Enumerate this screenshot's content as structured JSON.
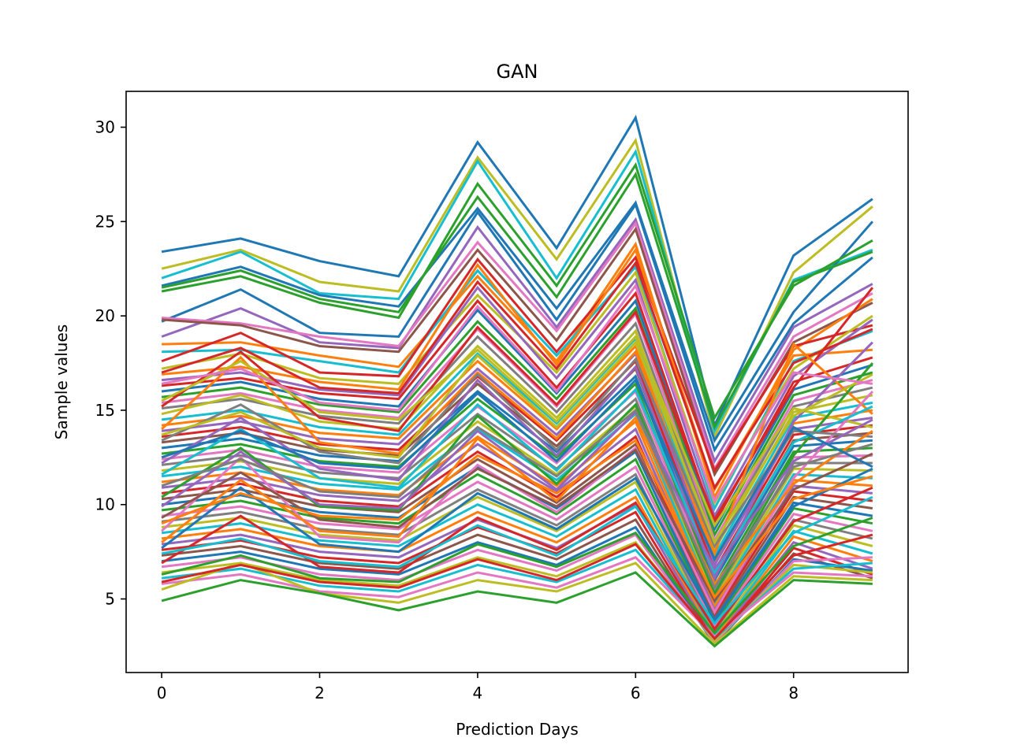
{
  "chart_data": {
    "type": "line",
    "title": "GAN",
    "xlabel": "Prediction Days",
    "ylabel": "Sample values",
    "xlim": [
      -0.45,
      9.45
    ],
    "ylim": [
      1.1,
      31.9
    ],
    "xticks": [
      0,
      2,
      4,
      6,
      8
    ],
    "yticks": [
      5,
      10,
      15,
      20,
      25,
      30
    ],
    "grid": false,
    "legend": "none",
    "x": [
      0,
      1,
      2,
      3,
      4,
      5,
      6,
      7,
      8,
      9
    ],
    "palette": [
      "#1f77b4",
      "#ff7f0e",
      "#2ca02c",
      "#d62728",
      "#9467bd",
      "#8c564b",
      "#e377c2",
      "#7f7f7f",
      "#bcbd22",
      "#17becf"
    ],
    "series": [
      {
        "color": "#1f77b4",
        "values": [
          23.4,
          24.1,
          22.9,
          22.1,
          29.2,
          23.6,
          30.5,
          14.2,
          23.2,
          26.2
        ]
      },
      {
        "color": "#bcbd22",
        "values": [
          22.5,
          23.5,
          21.8,
          21.3,
          28.4,
          23.0,
          29.3,
          13.6,
          22.3,
          25.8
        ]
      },
      {
        "color": "#17becf",
        "values": [
          22.0,
          23.4,
          21.2,
          20.9,
          28.2,
          22.0,
          28.7,
          13.9,
          21.9,
          23.5
        ]
      },
      {
        "color": "#1f77b4",
        "values": [
          21.6,
          22.6,
          21.1,
          20.5,
          25.7,
          20.4,
          26.0,
          13.4,
          20.2,
          25.0
        ]
      },
      {
        "color": "#2ca02c",
        "values": [
          21.3,
          22.1,
          20.7,
          19.9,
          27.0,
          21.6,
          28.0,
          14.6,
          21.6,
          24.0
        ]
      },
      {
        "color": "#2ca02c",
        "values": [
          21.5,
          22.4,
          20.9,
          20.2,
          26.3,
          21.0,
          27.5,
          14.1,
          21.8,
          23.4
        ]
      },
      {
        "color": "#1f77b4",
        "values": [
          19.7,
          21.4,
          19.1,
          18.9,
          25.5,
          19.8,
          25.9,
          12.9,
          19.6,
          23.1
        ]
      },
      {
        "color": "#9467bd",
        "values": [
          18.9,
          20.4,
          18.6,
          18.3,
          24.7,
          19.4,
          25.1,
          12.3,
          19.4,
          21.7
        ]
      },
      {
        "color": "#e377c2",
        "values": [
          19.9,
          19.6,
          18.9,
          18.4,
          23.9,
          19.2,
          24.9,
          11.9,
          18.9,
          21.2
        ]
      },
      {
        "color": "#8c564b",
        "values": [
          19.8,
          19.5,
          18.4,
          18.1,
          23.5,
          18.7,
          24.6,
          11.6,
          18.6,
          20.7
        ]
      },
      {
        "color": "#ff7f0e",
        "values": [
          18.5,
          18.6,
          17.9,
          17.3,
          22.1,
          17.6,
          23.8,
          10.4,
          18.2,
          20.9
        ]
      },
      {
        "color": "#17becf",
        "values": [
          18.1,
          18.2,
          17.6,
          17.0,
          22.4,
          17.9,
          22.6,
          9.8,
          17.6,
          19.2
        ]
      },
      {
        "color": "#d62728",
        "values": [
          17.6,
          19.1,
          17.0,
          16.8,
          23.0,
          18.1,
          23.1,
          11.8,
          18.4,
          19.5
        ]
      },
      {
        "color": "#bcbd22",
        "values": [
          17.2,
          18.0,
          16.7,
          16.4,
          21.1,
          17.0,
          22.3,
          10.1,
          17.2,
          20.0
        ]
      },
      {
        "color": "#ff7f0e",
        "values": [
          16.9,
          17.3,
          16.5,
          16.1,
          22.7,
          17.4,
          23.5,
          10.8,
          17.9,
          18.2
        ]
      },
      {
        "color": "#9467bd",
        "values": [
          16.6,
          17.0,
          16.1,
          15.8,
          21.5,
          16.7,
          21.9,
          9.4,
          16.8,
          19.8
        ]
      },
      {
        "color": "#d62728",
        "values": [
          16.3,
          16.7,
          15.9,
          15.6,
          20.8,
          16.2,
          21.2,
          9.0,
          16.5,
          17.8
        ]
      },
      {
        "color": "#1f77b4",
        "values": [
          16.0,
          16.5,
          15.6,
          15.2,
          20.3,
          15.9,
          20.8,
          8.7,
          16.1,
          17.4
        ]
      },
      {
        "color": "#2ca02c",
        "values": [
          15.7,
          16.2,
          15.3,
          14.9,
          19.7,
          15.6,
          20.4,
          8.4,
          15.8,
          17.0
        ]
      },
      {
        "color": "#e377c2",
        "values": [
          15.4,
          15.9,
          15.0,
          14.6,
          19.3,
          15.2,
          20.1,
          8.1,
          15.5,
          16.6
        ]
      },
      {
        "color": "#7f7f7f",
        "values": [
          15.1,
          15.6,
          14.7,
          14.3,
          18.9,
          14.9,
          19.6,
          7.9,
          15.2,
          16.2
        ]
      },
      {
        "color": "#bcbd22",
        "values": [
          14.8,
          15.8,
          14.4,
          14.0,
          18.4,
          14.6,
          19.2,
          7.6,
          14.9,
          15.8
        ]
      },
      {
        "color": "#17becf",
        "values": [
          14.5,
          15.0,
          14.1,
          13.7,
          18.0,
          14.3,
          18.8,
          7.3,
          14.6,
          15.4
        ]
      },
      {
        "color": "#ff7f0e",
        "values": [
          14.2,
          14.7,
          13.8,
          13.5,
          17.6,
          14.0,
          18.4,
          7.0,
          14.3,
          15.0
        ]
      },
      {
        "color": "#9467bd",
        "values": [
          13.9,
          14.4,
          13.5,
          13.2,
          17.2,
          13.7,
          18.0,
          6.8,
          14.0,
          14.6
        ]
      },
      {
        "color": "#d62728",
        "values": [
          13.6,
          14.1,
          13.2,
          12.9,
          16.8,
          13.4,
          17.6,
          6.5,
          13.7,
          14.2
        ]
      },
      {
        "color": "#8c564b",
        "values": [
          13.3,
          13.8,
          12.9,
          12.6,
          16.4,
          13.1,
          17.2,
          6.2,
          13.4,
          13.8
        ]
      },
      {
        "color": "#1f77b4",
        "values": [
          13.0,
          13.5,
          12.6,
          12.3,
          16.0,
          12.8,
          16.8,
          6.0,
          13.1,
          13.4
        ]
      },
      {
        "color": "#2ca02c",
        "values": [
          12.7,
          13.2,
          12.3,
          12.0,
          15.6,
          12.5,
          16.4,
          5.7,
          12.8,
          13.0
        ]
      },
      {
        "color": "#e377c2",
        "values": [
          12.4,
          12.9,
          12.0,
          11.7,
          15.2,
          12.2,
          16.0,
          5.5,
          12.5,
          12.6
        ]
      },
      {
        "color": "#7f7f7f",
        "values": [
          12.1,
          12.6,
          11.7,
          11.4,
          14.8,
          11.9,
          15.6,
          5.2,
          12.2,
          12.2
        ]
      },
      {
        "color": "#bcbd22",
        "values": [
          11.8,
          12.3,
          11.4,
          11.1,
          14.4,
          11.6,
          15.2,
          5.0,
          11.9,
          11.8
        ]
      },
      {
        "color": "#17becf",
        "values": [
          11.5,
          12.0,
          11.1,
          10.8,
          14.0,
          11.3,
          14.8,
          4.8,
          11.6,
          11.4
        ]
      },
      {
        "color": "#ff7f0e",
        "values": [
          11.2,
          11.7,
          10.8,
          10.5,
          13.6,
          11.0,
          14.4,
          4.6,
          11.3,
          11.0
        ]
      },
      {
        "color": "#9467bd",
        "values": [
          10.9,
          11.4,
          10.5,
          10.2,
          13.2,
          10.7,
          14.0,
          4.4,
          11.0,
          10.6
        ]
      },
      {
        "color": "#d62728",
        "values": [
          10.6,
          11.1,
          10.2,
          9.9,
          12.8,
          10.4,
          13.6,
          4.2,
          10.7,
          10.2
        ]
      },
      {
        "color": "#8c564b",
        "values": [
          10.3,
          10.8,
          9.9,
          9.6,
          12.4,
          10.1,
          13.2,
          4.0,
          10.4,
          9.8
        ]
      },
      {
        "color": "#1f77b4",
        "values": [
          10.0,
          10.5,
          9.6,
          9.3,
          12.0,
          9.8,
          12.8,
          3.8,
          10.1,
          9.4
        ]
      },
      {
        "color": "#2ca02c",
        "values": [
          9.7,
          10.2,
          9.3,
          9.0,
          11.6,
          9.5,
          12.4,
          3.6,
          9.8,
          9.0
        ]
      },
      {
        "color": "#e377c2",
        "values": [
          9.4,
          9.9,
          9.0,
          8.7,
          11.2,
          9.2,
          12.0,
          3.5,
          9.5,
          8.6
        ]
      },
      {
        "color": "#7f7f7f",
        "values": [
          9.1,
          9.6,
          8.7,
          8.4,
          10.8,
          8.9,
          11.6,
          3.3,
          9.2,
          8.2
        ]
      },
      {
        "color": "#bcbd22",
        "values": [
          8.8,
          9.3,
          8.4,
          8.1,
          10.4,
          8.6,
          11.2,
          3.1,
          8.9,
          7.8
        ]
      },
      {
        "color": "#17becf",
        "values": [
          8.5,
          9.0,
          8.1,
          7.8,
          10.0,
          8.3,
          10.8,
          3.0,
          8.6,
          7.4
        ]
      },
      {
        "color": "#ff7f0e",
        "values": [
          8.2,
          8.7,
          7.8,
          7.5,
          9.6,
          8.0,
          10.4,
          2.9,
          8.3,
          7.0
        ]
      },
      {
        "color": "#9467bd",
        "values": [
          7.9,
          8.4,
          7.5,
          7.2,
          9.2,
          7.7,
          10.0,
          2.8,
          8.0,
          6.6
        ]
      },
      {
        "color": "#d62728",
        "values": [
          7.6,
          8.1,
          7.2,
          6.9,
          8.8,
          7.4,
          9.6,
          2.7,
          7.7,
          6.3
        ]
      },
      {
        "color": "#8c564b",
        "values": [
          7.3,
          7.8,
          6.9,
          6.6,
          8.4,
          7.1,
          9.2,
          2.6,
          7.4,
          6.1
        ]
      },
      {
        "color": "#1f77b4",
        "values": [
          7.0,
          7.5,
          6.6,
          6.3,
          8.0,
          6.8,
          8.8,
          2.6,
          7.1,
          6.5
        ]
      },
      {
        "color": "#e377c2",
        "values": [
          6.7,
          7.2,
          6.3,
          6.0,
          7.6,
          6.5,
          8.4,
          2.7,
          7.0,
          7.2
        ]
      },
      {
        "color": "#bcbd22",
        "values": [
          6.4,
          6.9,
          6.0,
          5.7,
          7.2,
          6.2,
          8.0,
          2.8,
          6.8,
          6.4
        ]
      },
      {
        "color": "#17becf",
        "values": [
          6.1,
          6.6,
          5.7,
          5.4,
          6.8,
          5.9,
          7.6,
          2.9,
          6.6,
          6.9
        ]
      },
      {
        "color": "#e377c2",
        "values": [
          5.8,
          6.3,
          5.4,
          5.1,
          6.4,
          5.6,
          7.2,
          3.0,
          6.4,
          6.2
        ]
      },
      {
        "color": "#bcbd22",
        "values": [
          5.5,
          6.9,
          5.3,
          4.8,
          6.0,
          5.4,
          6.9,
          2.6,
          6.2,
          6.0
        ]
      },
      {
        "color": "#2ca02c",
        "values": [
          4.9,
          6.0,
          5.3,
          4.4,
          5.4,
          4.8,
          6.4,
          2.5,
          6.0,
          5.8
        ]
      },
      {
        "color": "#d62728",
        "values": [
          15.2,
          18.1,
          14.6,
          13.9,
          19.4,
          15.3,
          20.2,
          9.2,
          16.2,
          21.5
        ]
      },
      {
        "color": "#d62728",
        "values": [
          17.0,
          18.3,
          16.2,
          15.9,
          21.8,
          17.2,
          22.8,
          10.9,
          17.5,
          19.3
        ]
      },
      {
        "color": "#ff7f0e",
        "values": [
          14.0,
          17.8,
          13.3,
          12.7,
          17.0,
          13.5,
          18.1,
          7.4,
          18.5,
          14.8
        ]
      },
      {
        "color": "#bcbd22",
        "values": [
          15.5,
          17.6,
          14.9,
          14.5,
          18.2,
          14.4,
          18.9,
          8.9,
          15.1,
          14.1
        ]
      },
      {
        "color": "#9467bd",
        "values": [
          12.2,
          14.6,
          11.9,
          11.3,
          16.6,
          12.6,
          17.3,
          6.1,
          14.4,
          18.6
        ]
      },
      {
        "color": "#2ca02c",
        "values": [
          10.4,
          13.0,
          9.9,
          9.7,
          14.7,
          11.1,
          15.3,
          5.3,
          12.6,
          17.5
        ]
      },
      {
        "color": "#e377c2",
        "values": [
          8.6,
          12.5,
          8.3,
          8.0,
          12.1,
          9.6,
          13.0,
          4.3,
          11.4,
          16.0
        ]
      },
      {
        "color": "#17becf",
        "values": [
          11.6,
          14.0,
          11.4,
          10.9,
          15.3,
          11.8,
          16.1,
          6.4,
          13.3,
          15.2
        ]
      },
      {
        "color": "#7f7f7f",
        "values": [
          13.4,
          15.3,
          12.8,
          12.2,
          16.9,
          12.9,
          17.7,
          7.8,
          13.9,
          13.6
        ]
      },
      {
        "color": "#8c564b",
        "values": [
          9.3,
          11.7,
          9.2,
          8.8,
          11.9,
          9.9,
          12.9,
          4.9,
          10.8,
          12.7
        ]
      },
      {
        "color": "#1f77b4",
        "values": [
          7.7,
          10.9,
          7.9,
          7.5,
          10.6,
          8.7,
          11.4,
          3.9,
          9.9,
          11.9
        ]
      },
      {
        "color": "#d62728",
        "values": [
          6.9,
          9.4,
          6.7,
          6.4,
          9.3,
          7.6,
          10.1,
          3.4,
          9.1,
          10.9
        ]
      },
      {
        "color": "#ff7f0e",
        "values": [
          8.0,
          11.3,
          8.6,
          8.3,
          13.5,
          10.2,
          14.6,
          5.8,
          11.1,
          13.9
        ]
      },
      {
        "color": "#9467bd",
        "values": [
          9.9,
          12.8,
          10.0,
          9.8,
          13.9,
          10.8,
          14.9,
          6.6,
          12.3,
          14.5
        ]
      },
      {
        "color": "#bcbd22",
        "values": [
          13.7,
          14.9,
          13.0,
          12.5,
          17.9,
          14.1,
          18.6,
          8.0,
          14.7,
          16.9
        ]
      },
      {
        "color": "#2ca02c",
        "values": [
          6.3,
          7.3,
          6.1,
          5.9,
          7.9,
          6.7,
          8.5,
          3.2,
          7.8,
          9.3
        ]
      },
      {
        "color": "#17becf",
        "values": [
          7.4,
          8.2,
          7.0,
          6.7,
          8.9,
          7.3,
          9.9,
          3.7,
          8.5,
          10.4
        ]
      },
      {
        "color": "#e377c2",
        "values": [
          16.4,
          17.2,
          15.4,
          15.0,
          20.5,
          16.0,
          21.6,
          10.2,
          17.0,
          16.4
        ]
      },
      {
        "color": "#7f7f7f",
        "values": [
          11.0,
          12.4,
          10.7,
          10.4,
          14.1,
          11.5,
          15.0,
          5.6,
          12.0,
          13.2
        ]
      },
      {
        "color": "#d62728",
        "values": [
          5.9,
          6.8,
          5.9,
          5.6,
          7.1,
          6.0,
          7.9,
          2.9,
          7.3,
          8.4
        ]
      },
      {
        "color": "#1f77b4",
        "values": [
          12.5,
          13.9,
          12.2,
          11.9,
          15.9,
          12.3,
          16.6,
          7.1,
          14.1,
          12.0
        ]
      },
      {
        "color": "#ff7f0e",
        "values": [
          9.0,
          10.6,
          9.4,
          9.2,
          12.6,
          10.6,
          13.4,
          5.1,
          10.3,
          11.5
        ]
      }
    ]
  }
}
